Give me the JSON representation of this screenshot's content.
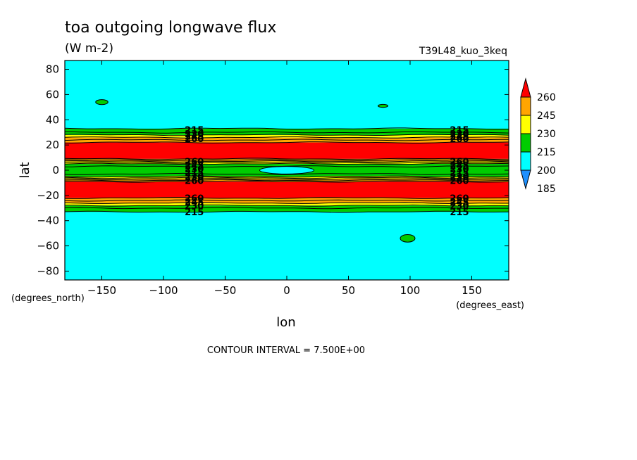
{
  "chart_data": {
    "type": "filled-contour",
    "title": "toa outgoing longwave flux",
    "units": "(W m-2)",
    "dataset": "T39L48_kuo_3keq",
    "xlabel": "lon",
    "ylabel": "lat",
    "x_units": "(degrees_east)",
    "y_units": "(degrees_north)",
    "xlim": [
      -180,
      180
    ],
    "ylim": [
      -87,
      87
    ],
    "x_ticks": [
      -150,
      -100,
      -50,
      0,
      50,
      100,
      150
    ],
    "y_ticks": [
      -80,
      -60,
      -40,
      -20,
      0,
      20,
      40,
      60,
      80
    ],
    "x_tick_labels": [
      "−150",
      "−100",
      "−50",
      "0",
      "50",
      "100",
      "150"
    ],
    "y_tick_labels": [
      "−80",
      "−60",
      "−40",
      "−20",
      "0",
      "20",
      "40",
      "60",
      "80"
    ],
    "contour_interval_text": "CONTOUR INTERVAL = 7.500E+00",
    "colorbar": {
      "levels": [
        185,
        200,
        215,
        230,
        245,
        260
      ],
      "labels": [
        "185",
        "200",
        "215",
        "230",
        "245",
        "260"
      ],
      "colors": [
        "#1e90ff",
        "#00ffff",
        "#00cd00",
        "#ffff00",
        "#ffa500",
        "#ff0000"
      ]
    },
    "zonal_bands": [
      {
        "lat_from": -87,
        "lat_to": -33,
        "color": "#00ffff"
      },
      {
        "lat_from": -33,
        "lat_to": -28,
        "color": "#00cd00"
      },
      {
        "lat_from": -28,
        "lat_to": -26,
        "color": "#ffff00"
      },
      {
        "lat_from": -26,
        "lat_to": -22,
        "color": "#ffa500"
      },
      {
        "lat_from": -22,
        "lat_to": -9,
        "color": "#ff0000"
      },
      {
        "lat_from": -9,
        "lat_to": -7,
        "color": "#ffa500"
      },
      {
        "lat_from": -7,
        "lat_to": -5,
        "color": "#ffff00"
      },
      {
        "lat_from": -5,
        "lat_to": 5,
        "color": "#00cd00"
      },
      {
        "lat_from": 5,
        "lat_to": 7,
        "color": "#ffff00"
      },
      {
        "lat_from": 7,
        "lat_to": 9,
        "color": "#ffa500"
      },
      {
        "lat_from": 9,
        "lat_to": 22,
        "color": "#ff0000"
      },
      {
        "lat_from": 22,
        "lat_to": 26,
        "color": "#ffa500"
      },
      {
        "lat_from": 26,
        "lat_to": 28,
        "color": "#ffff00"
      },
      {
        "lat_from": 28,
        "lat_to": 33,
        "color": "#00cd00"
      },
      {
        "lat_from": 33,
        "lat_to": 87,
        "color": "#00ffff"
      }
    ],
    "contour_lines_lat": [
      -33,
      -30,
      -28,
      -26,
      -24,
      -22,
      -9,
      -8,
      -7,
      -6,
      -5,
      -3,
      3,
      5,
      6,
      7,
      8,
      9,
      22,
      24,
      26,
      28,
      30,
      33
    ],
    "patches": [
      {
        "lon": 0,
        "lat": 0,
        "dlon": 22,
        "dlat": 3,
        "color": "#00ffff"
      },
      {
        "lon": -150,
        "lat": 54,
        "dlon": 5,
        "dlat": 2,
        "color": "#00cd00"
      },
      {
        "lon": 78,
        "lat": 51,
        "dlon": 4,
        "dlat": 1.2,
        "color": "#00cd00"
      },
      {
        "lon": 98,
        "lat": -54,
        "dlon": 6,
        "dlat": 3,
        "color": "#00cd00"
      }
    ],
    "contour_labels": [
      {
        "lon": -75,
        "lat": 32,
        "text": "215"
      },
      {
        "lon": -75,
        "lat": 29,
        "text": "230"
      },
      {
        "lon": -75,
        "lat": 27,
        "text": "245"
      },
      {
        "lon": -75,
        "lat": 25,
        "text": "260"
      },
      {
        "lon": 140,
        "lat": 32,
        "text": "215"
      },
      {
        "lon": 140,
        "lat": 29,
        "text": "230"
      },
      {
        "lon": 140,
        "lat": 27,
        "text": "245"
      },
      {
        "lon": 140,
        "lat": 25,
        "text": "260"
      },
      {
        "lon": -75,
        "lat": 7,
        "text": "260"
      },
      {
        "lon": -75,
        "lat": 4,
        "text": "245"
      },
      {
        "lon": -75,
        "lat": 1,
        "text": "230"
      },
      {
        "lon": -75,
        "lat": -2,
        "text": "215"
      },
      {
        "lon": -75,
        "lat": -5,
        "text": "230"
      },
      {
        "lon": -75,
        "lat": -8,
        "text": "260"
      },
      {
        "lon": 140,
        "lat": 7,
        "text": "260"
      },
      {
        "lon": 140,
        "lat": 4,
        "text": "245"
      },
      {
        "lon": 140,
        "lat": 1,
        "text": "230"
      },
      {
        "lon": 140,
        "lat": -2,
        "text": "215"
      },
      {
        "lon": 140,
        "lat": -5,
        "text": "230"
      },
      {
        "lon": 140,
        "lat": -8,
        "text": "260"
      },
      {
        "lon": -75,
        "lat": -22,
        "text": "260"
      },
      {
        "lon": -75,
        "lat": -25,
        "text": "245"
      },
      {
        "lon": -75,
        "lat": -28,
        "text": "230"
      },
      {
        "lon": -75,
        "lat": -33,
        "text": "215"
      },
      {
        "lon": 140,
        "lat": -22,
        "text": "260"
      },
      {
        "lon": 140,
        "lat": -25,
        "text": "245"
      },
      {
        "lon": 140,
        "lat": -28,
        "text": "230"
      },
      {
        "lon": 140,
        "lat": -33,
        "text": "215"
      }
    ]
  }
}
